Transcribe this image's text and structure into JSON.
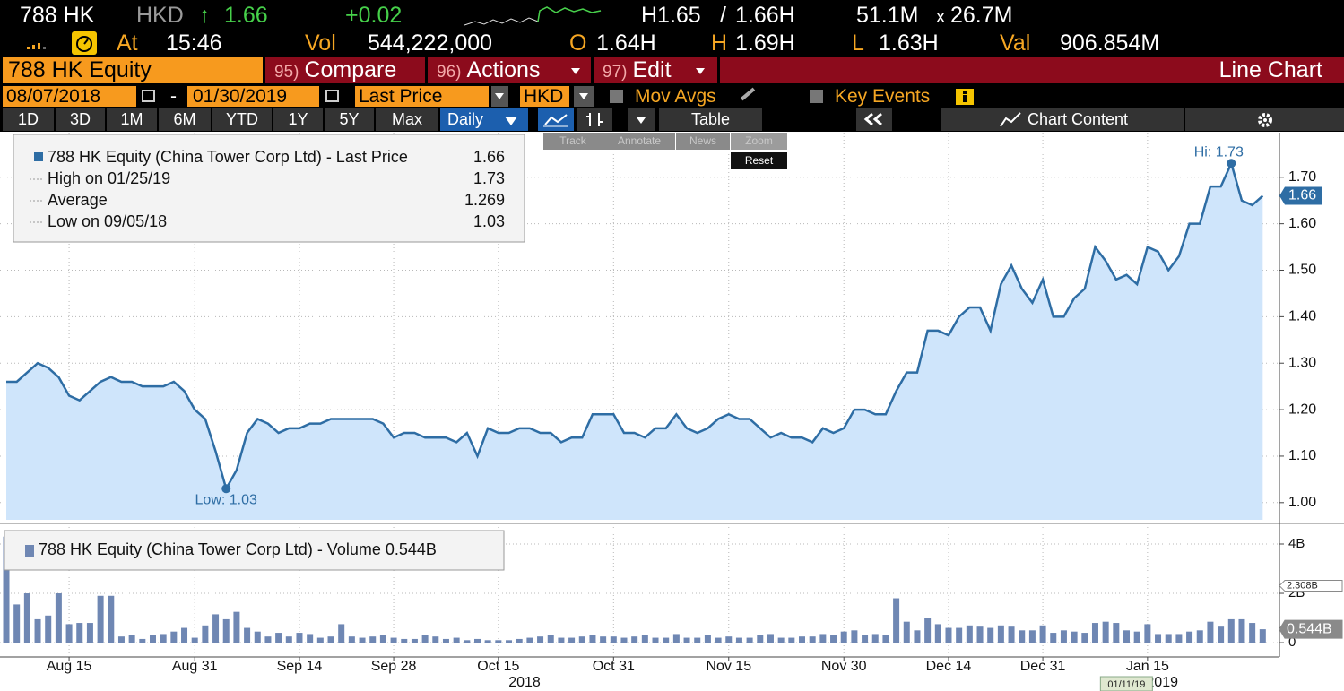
{
  "quote": {
    "ticker": "788 HK",
    "currency": "HKD",
    "arrow": "↑",
    "last": "1.66",
    "change": "+0.02",
    "bid": "H1.65",
    "sep": "/",
    "ask": "1.66H",
    "bid_size": "51.1M",
    "x": "x",
    "ask_size": "26.7M",
    "at_label": "At",
    "time": "15:46",
    "vol_label": "Vol",
    "volume": "544,222,000",
    "open_label": "O",
    "open": "1.64H",
    "high_label": "H",
    "high": "1.69H",
    "low_label": "L",
    "low": "1.63H",
    "val_label": "Val",
    "value": "906.854M"
  },
  "toolbar": {
    "security": "788 HK Equity",
    "menus": [
      {
        "num": "95)",
        "label": "Compare"
      },
      {
        "num": "96)",
        "label": "Actions"
      },
      {
        "num": "97)",
        "label": "Edit"
      }
    ],
    "view": "Line Chart",
    "start_date": "08/07/2018",
    "dash": "-",
    "end_date": "01/30/2019",
    "field": "Last Price",
    "currency": "HKD",
    "mov_avgs": "Mov Avgs",
    "key_events": "Key Events",
    "ranges": [
      "1D",
      "3D",
      "1M",
      "6M",
      "YTD",
      "1Y",
      "5Y",
      "Max"
    ],
    "period": "Daily",
    "table": "Table",
    "chart_content": "Chart Content",
    "tools": [
      "Track",
      "Annotate",
      "News",
      "Zoom"
    ],
    "reset": "Reset"
  },
  "x_axis": {
    "xlim": [
      -0.6,
      121.6
    ],
    "xticks": [
      {
        "value": 6,
        "label": "Aug 15"
      },
      {
        "value": 18,
        "label": "Aug 31"
      },
      {
        "value": 28,
        "label": "Sep 14"
      },
      {
        "value": 37,
        "label": "Sep 28"
      },
      {
        "value": 47,
        "label": "Oct 15"
      },
      {
        "value": 58,
        "label": "Oct 31"
      },
      {
        "value": 69,
        "label": "Nov 15"
      },
      {
        "value": 80,
        "label": "Nov 30"
      },
      {
        "value": 90,
        "label": "Dec 14"
      },
      {
        "value": 99,
        "label": "Dec 31"
      },
      {
        "value": 109,
        "label": "Jan 15"
      }
    ],
    "years": [
      {
        "value": 49.5,
        "label": "2018"
      },
      {
        "value": 110.4,
        "label": "2019"
      }
    ],
    "crosshair": {
      "value": 106.9,
      "label": "01/11/19"
    },
    "grid": true
  },
  "chart_data": [
    {
      "type": "line",
      "color": "#2e6da4",
      "area_color": "#cfe5fb",
      "grid": true,
      "legend": {
        "title": "788 HK Equity (China Tower Corp Ltd) - Last Price",
        "title_value": "1.66",
        "rows": [
          {
            "label": "High on 01/25/19",
            "value": "1.73"
          },
          {
            "label": "Average",
            "value": "1.269"
          },
          {
            "label": "Low on 09/05/18",
            "value": "1.03"
          }
        ]
      },
      "values": [
        1.26,
        1.26,
        1.28,
        1.3,
        1.29,
        1.27,
        1.23,
        1.22,
        1.24,
        1.26,
        1.27,
        1.26,
        1.26,
        1.25,
        1.25,
        1.25,
        1.26,
        1.24,
        1.2,
        1.18,
        1.11,
        1.03,
        1.07,
        1.15,
        1.18,
        1.17,
        1.15,
        1.16,
        1.16,
        1.17,
        1.17,
        1.18,
        1.18,
        1.18,
        1.18,
        1.18,
        1.17,
        1.14,
        1.15,
        1.15,
        1.14,
        1.14,
        1.14,
        1.13,
        1.15,
        1.1,
        1.16,
        1.15,
        1.15,
        1.16,
        1.16,
        1.15,
        1.15,
        1.13,
        1.14,
        1.14,
        1.19,
        1.19,
        1.19,
        1.15,
        1.15,
        1.14,
        1.16,
        1.16,
        1.19,
        1.16,
        1.15,
        1.16,
        1.18,
        1.19,
        1.18,
        1.18,
        1.16,
        1.14,
        1.15,
        1.14,
        1.14,
        1.13,
        1.16,
        1.15,
        1.16,
        1.2,
        1.2,
        1.19,
        1.19,
        1.24,
        1.28,
        1.28,
        1.37,
        1.37,
        1.36,
        1.4,
        1.42,
        1.42,
        1.37,
        1.47,
        1.51,
        1.46,
        1.43,
        1.48,
        1.4,
        1.4,
        1.44,
        1.46,
        1.55,
        1.52,
        1.48,
        1.49,
        1.47,
        1.55,
        1.54,
        1.5,
        1.53,
        1.6,
        1.6,
        1.68,
        1.68,
        1.73,
        1.65,
        1.64,
        1.66
      ],
      "ylim": [
        0.963,
        1.796
      ],
      "yticks": [
        {
          "value": 1,
          "label": "1.00"
        },
        {
          "value": 1.1,
          "label": "1.10"
        },
        {
          "value": 1.2,
          "label": "1.20"
        },
        {
          "value": 1.3,
          "label": "1.30"
        },
        {
          "value": 1.4,
          "label": "1.40"
        },
        {
          "value": 1.5,
          "label": "1.50"
        },
        {
          "value": 1.6,
          "label": "1.60"
        },
        {
          "value": 1.7,
          "label": "1.70"
        }
      ],
      "last_label": {
        "value": 1.66,
        "label": "1.66"
      },
      "annotations": [
        {
          "x": 117,
          "value": 1.73,
          "label": "Hi: 1.73"
        },
        {
          "x": 21,
          "value": 1.03,
          "label": "Low: 1.03"
        }
      ]
    },
    {
      "type": "bar",
      "color": "#6f87b3",
      "grid": true,
      "legend": {
        "title": "788 HK Equity (China Tower Corp Ltd) - Volume",
        "title_value": "0.544B"
      },
      "values": [
        4.3,
        1.55,
        2.0,
        0.95,
        1.1,
        2.0,
        0.75,
        0.8,
        0.8,
        1.9,
        1.9,
        0.25,
        0.3,
        0.15,
        0.3,
        0.35,
        0.45,
        0.6,
        0.2,
        0.7,
        1.15,
        0.95,
        1.25,
        0.6,
        0.45,
        0.25,
        0.4,
        0.25,
        0.4,
        0.35,
        0.2,
        0.25,
        0.75,
        0.25,
        0.2,
        0.25,
        0.3,
        0.2,
        0.15,
        0.15,
        0.3,
        0.25,
        0.15,
        0.2,
        0.1,
        0.15,
        0.1,
        0.1,
        0.1,
        0.15,
        0.2,
        0.25,
        0.3,
        0.2,
        0.2,
        0.25,
        0.3,
        0.25,
        0.25,
        0.2,
        0.25,
        0.3,
        0.2,
        0.2,
        0.35,
        0.2,
        0.2,
        0.3,
        0.2,
        0.25,
        0.2,
        0.2,
        0.3,
        0.35,
        0.2,
        0.2,
        0.25,
        0.25,
        0.35,
        0.3,
        0.45,
        0.5,
        0.3,
        0.35,
        0.3,
        1.8,
        0.85,
        0.5,
        1.0,
        0.75,
        0.6,
        0.6,
        0.7,
        0.65,
        0.6,
        0.7,
        0.65,
        0.5,
        0.5,
        0.7,
        0.4,
        0.5,
        0.45,
        0.4,
        0.8,
        0.85,
        0.8,
        0.5,
        0.45,
        0.75,
        0.35,
        0.35,
        0.35,
        0.45,
        0.5,
        0.85,
        0.65,
        0.95,
        0.95,
        0.8,
        0.544
      ],
      "ylim": [
        -0.47,
        4.69
      ],
      "yticks": [
        0,
        {
          "value": 2,
          "label": "2B"
        },
        {
          "value": 4,
          "label": "4B"
        }
      ],
      "markers": [
        {
          "value": 2.308,
          "label": "2.308B"
        },
        {
          "value": 0.544,
          "label": "0.544B"
        }
      ]
    }
  ]
}
